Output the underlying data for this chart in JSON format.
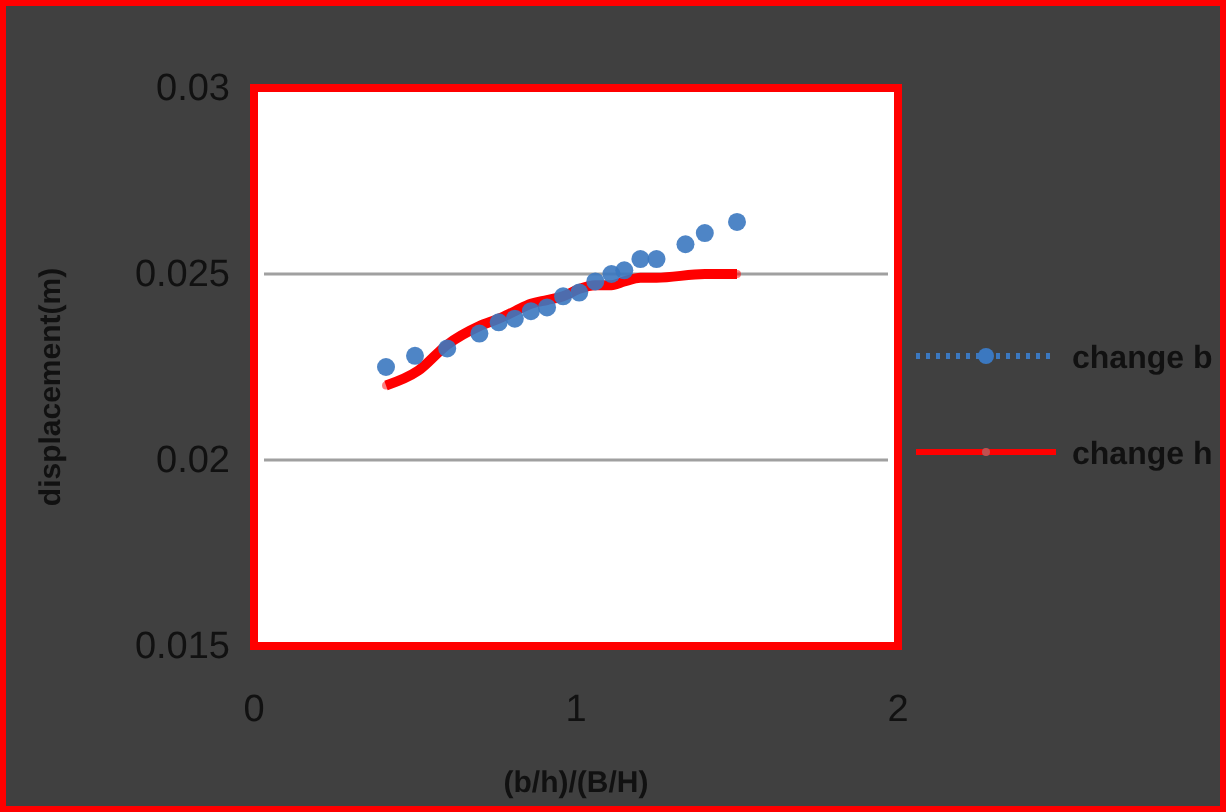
{
  "chart_data": {
    "type": "line",
    "xlabel": "(b/h)/(B/H)",
    "ylabel": "displacement(m)",
    "xlim": [
      0,
      2
    ],
    "xticks": [
      0,
      1,
      2
    ],
    "ylim": [
      0.015,
      0.03
    ],
    "yticks": [
      0.015,
      0.02,
      0.025,
      0.03
    ],
    "grid": "y",
    "legend": "right",
    "marker": "circle",
    "series": [
      {
        "name": "change b",
        "type": "scatter",
        "color": "#3b78c0",
        "x": [
          0.41,
          0.5,
          0.6,
          0.7,
          0.76,
          0.81,
          0.86,
          0.91,
          0.96,
          1.01,
          1.06,
          1.11,
          1.15,
          1.2,
          1.25,
          1.34,
          1.4,
          1.5
        ],
        "values": [
          0.0225,
          0.0228,
          0.023,
          0.0234,
          0.0237,
          0.0238,
          0.024,
          0.0241,
          0.0244,
          0.0245,
          0.0248,
          0.025,
          0.0251,
          0.0254,
          0.0254,
          0.0258,
          0.0261,
          0.0264
        ]
      },
      {
        "name": "change h",
        "type": "line",
        "color": "#ff0000",
        "x": [
          0.41,
          0.51,
          0.6,
          0.7,
          0.76,
          0.81,
          0.86,
          0.91,
          0.96,
          1.01,
          1.06,
          1.11,
          1.15,
          1.2,
          1.25,
          1.4,
          1.5
        ],
        "values": [
          0.022,
          0.0224,
          0.0231,
          0.0236,
          0.0238,
          0.024,
          0.0242,
          0.0243,
          0.0244,
          0.0246,
          0.0247,
          0.0247,
          0.0248,
          0.0249,
          0.0249,
          0.025,
          0.025
        ]
      }
    ]
  }
}
